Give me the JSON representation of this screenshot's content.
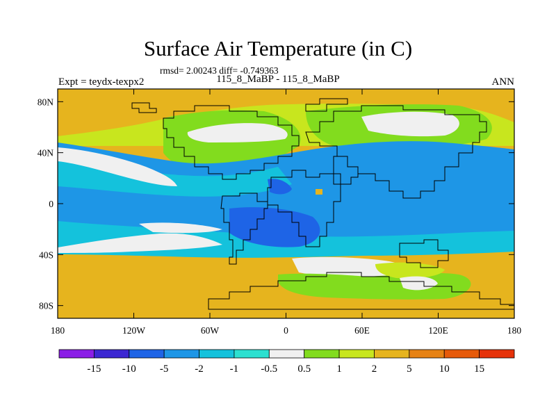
{
  "title": "Surface Air Temperature (in C)",
  "stats": "rmsd= 2.00243 diff= -0.749363",
  "left_label": "Expt = teydx-texpx2",
  "center_label": "115_8_MaBP - 115_8_MaBP",
  "right_label": "ANN",
  "axes": {
    "x_ticks": [
      {
        "value": -180,
        "label": "180"
      },
      {
        "value": -120,
        "label": "120W"
      },
      {
        "value": -60,
        "label": "60W"
      },
      {
        "value": 0,
        "label": "0"
      },
      {
        "value": 60,
        "label": "60E"
      },
      {
        "value": 120,
        "label": "120E"
      },
      {
        "value": 180,
        "label": "180"
      }
    ],
    "y_ticks": [
      {
        "value": 80,
        "label": "80N"
      },
      {
        "value": 40,
        "label": "40N"
      },
      {
        "value": 0,
        "label": "0"
      },
      {
        "value": -40,
        "label": "40S"
      },
      {
        "value": -80,
        "label": "80S"
      }
    ],
    "lon_range": [
      -180,
      180
    ],
    "lat_range": [
      -90,
      90
    ]
  },
  "colorbar": {
    "colors": [
      "#8b1ee6",
      "#3c28d2",
      "#1e64e6",
      "#1e96e6",
      "#14c2dc",
      "#2ce0d0",
      "#f0f0f0",
      "#82dc1e",
      "#c8e61e",
      "#e6b41e",
      "#e68214",
      "#e65a0a",
      "#e6320a"
    ],
    "labels": [
      "-15",
      "-10",
      "-5",
      "-2",
      "-1",
      "-0.5",
      "0.5",
      "1",
      "2",
      "5",
      "10",
      "15"
    ]
  }
}
